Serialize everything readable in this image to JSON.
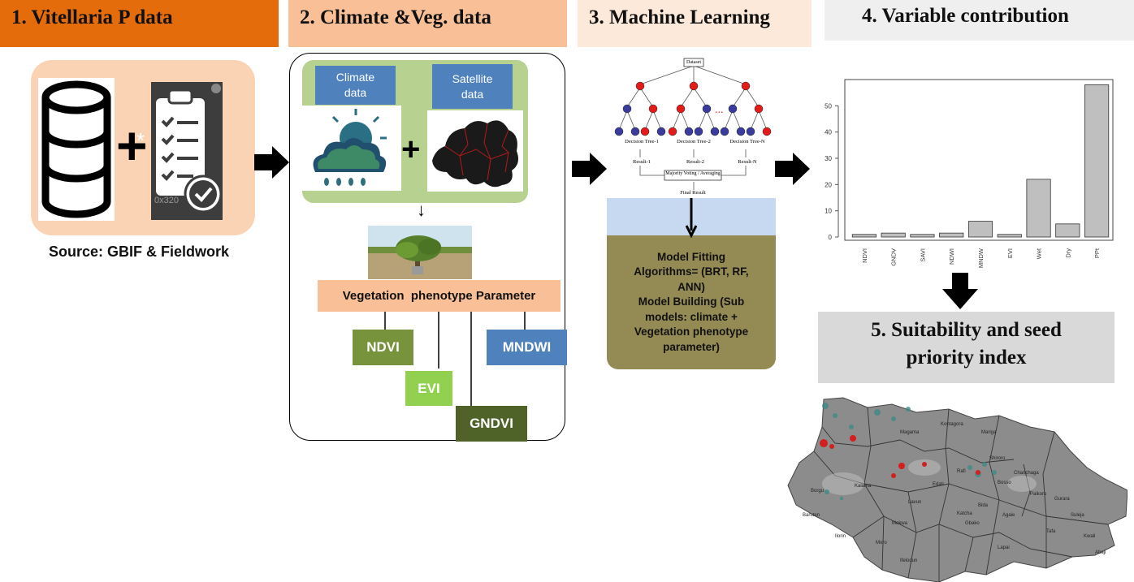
{
  "steps": {
    "s1": "1. Vitellaria P data",
    "s2": "2. Climate &Veg. data",
    "s3": "3. Machine Learning",
    "s4": "4. Variable contribution",
    "s5_line1": "5. Suitability and seed",
    "s5_line2": "priority index"
  },
  "panel1": {
    "source": "Source: GBIF & Fieldwork",
    "plus": "+",
    "star": "*",
    "img_watermark": "0x320"
  },
  "panel2": {
    "climate": "Climate\ndata",
    "satellite": "Satellite\ndata",
    "plus": "+",
    "down_arrow": "↓",
    "veg_param": "Vegetation  phenotype Parameter",
    "ndvi": "NDVI",
    "evi": "EVI",
    "mndwi": "MNDWI",
    "gndvi": "GNDVI"
  },
  "panel3": {
    "dataset": "Dataset",
    "tree1": "Decision Tree-1",
    "tree2": "Decision Tree-2",
    "treeN": "Decision Tree-N",
    "ellipsis": "...",
    "result1": "Result-1",
    "result2": "Result-2",
    "resultN": "Result-N",
    "voting": "Majority Voting / Averaging",
    "final": "Final Result",
    "model_text": "Model Fitting\nAlgorithms= (BRT, RF,\nANN)\nModel Building (Sub\nmodels: climate +\nVegetation phenotype\nparameter)"
  },
  "colors": {
    "h1": "#E46C0A",
    "h2": "#F9C097",
    "h3": "#FDE9D9",
    "h4": "#EFEFEF",
    "panel1": "#FAD3B5",
    "green_band": "#B6D190",
    "blue_box": "#4F81BD",
    "veg_param": "#F9C097",
    "ndvi": "#77933C",
    "evi": "#92D050",
    "gndvi": "#4F6228",
    "olive": "#948A54",
    "light_blue": "#C6D9F1",
    "node_red": "#E41B1B",
    "node_blue": "#3B3B9E",
    "bar": "#BFBFBF",
    "s5_box": "#D9D9D9"
  },
  "chart_data": {
    "type": "bar",
    "categories": [
      "NDVI",
      "GNDV",
      "SAVI",
      "NDWI",
      "MNDW",
      "EVI",
      "Wet",
      "Dry",
      "PPt"
    ],
    "values": [
      1,
      1.5,
      1,
      1.5,
      6,
      1,
      22,
      5,
      58
    ],
    "ylim": [
      0,
      60
    ],
    "yticks": [
      0,
      10,
      20,
      30,
      40,
      50
    ],
    "ytick_labels": [
      "0",
      "10",
      "20",
      "30",
      "40",
      "50"
    ],
    "title": "",
    "xlabel": "",
    "ylabel": ""
  },
  "map": {
    "labels": [
      "Magama",
      "Kontagora",
      "Mariga",
      "Shiroro",
      "Rafi",
      "Borgu",
      "Bosso",
      "Chanchaga",
      "Paikoro",
      "Gurara",
      "Suleja",
      "Tafa",
      "Lavun",
      "Mokwa",
      "Katcha",
      "Agaie",
      "Lapai",
      "Gbako",
      "Bida",
      "Edati",
      "Moro",
      "Ifelodun",
      "Baruten",
      "Kaiama",
      "Ilorin",
      "Kwali",
      "Abaji"
    ]
  }
}
